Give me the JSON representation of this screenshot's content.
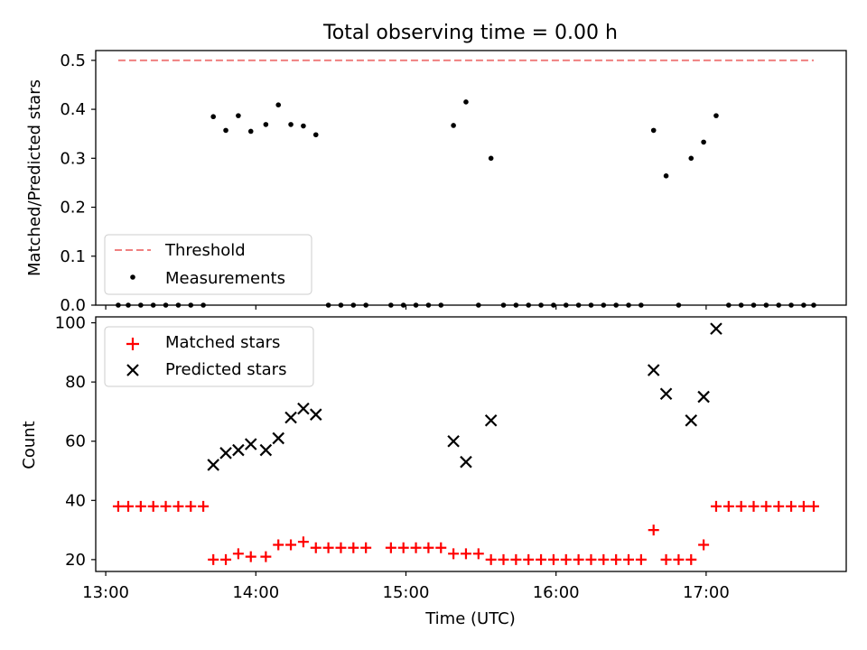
{
  "figure": {
    "title": "Total observing time = 0.00 h"
  },
  "chart_data": [
    {
      "type": "scatter",
      "ylabel": "Matched/Predicted stars",
      "ylim": [
        0,
        0.52
      ],
      "y_ticks": [
        "0.0",
        "0.1",
        "0.2",
        "0.3",
        "0.4",
        "0.5"
      ],
      "legend": {
        "placement": "lower-left"
      },
      "threshold": {
        "name": "Threshold",
        "value": 0.5,
        "x_range": [
          "13:05",
          "17:43"
        ],
        "color": "#f08080",
        "style": "dashed"
      },
      "series": [
        {
          "name": "Measurements",
          "color": "#000000",
          "marker": "dot",
          "points": [
            [
              "13:05",
              0
            ],
            [
              "13:09",
              0
            ],
            [
              "13:14",
              0
            ],
            [
              "13:19",
              0
            ],
            [
              "13:24",
              0
            ],
            [
              "13:29",
              0
            ],
            [
              "13:34",
              0
            ],
            [
              "13:39",
              0
            ],
            [
              "13:43",
              0.385
            ],
            [
              "13:48",
              0.357
            ],
            [
              "13:53",
              0.387
            ],
            [
              "13:58",
              0.355
            ],
            [
              "14:04",
              0.369
            ],
            [
              "14:09",
              0.409
            ],
            [
              "14:14",
              0.369
            ],
            [
              "14:19",
              0.366
            ],
            [
              "14:24",
              0.348
            ],
            [
              "14:29",
              0
            ],
            [
              "14:34",
              0
            ],
            [
              "14:39",
              0
            ],
            [
              "14:44",
              0
            ],
            [
              "14:54",
              0
            ],
            [
              "14:59",
              0
            ],
            [
              "15:04",
              0
            ],
            [
              "15:09",
              0
            ],
            [
              "15:14",
              0
            ],
            [
              "15:19",
              0.367
            ],
            [
              "15:24",
              0.415
            ],
            [
              "15:29",
              0
            ],
            [
              "15:34",
              0.3
            ],
            [
              "15:39",
              0
            ],
            [
              "15:44",
              0
            ],
            [
              "15:49",
              0
            ],
            [
              "15:54",
              0
            ],
            [
              "15:59",
              0
            ],
            [
              "16:04",
              0
            ],
            [
              "16:09",
              0
            ],
            [
              "16:14",
              0
            ],
            [
              "16:19",
              0
            ],
            [
              "16:24",
              0
            ],
            [
              "16:29",
              0
            ],
            [
              "16:34",
              0
            ],
            [
              "16:39",
              0.357
            ],
            [
              "16:44",
              0.264
            ],
            [
              "16:49",
              0
            ],
            [
              "16:54",
              0.3
            ],
            [
              "16:59",
              0.333
            ],
            [
              "17:04",
              0.387
            ],
            [
              "17:09",
              0
            ],
            [
              "17:14",
              0
            ],
            [
              "17:19",
              0
            ],
            [
              "17:24",
              0
            ],
            [
              "17:29",
              0
            ],
            [
              "17:34",
              0
            ],
            [
              "17:39",
              0
            ],
            [
              "17:43",
              0
            ]
          ]
        }
      ]
    },
    {
      "type": "scatter",
      "ylabel": "Count",
      "xlabel": "Time (UTC)",
      "ylim": [
        16,
        102
      ],
      "y_ticks": [
        "20",
        "40",
        "60",
        "80",
        "100"
      ],
      "x_ticks": [
        "13:00",
        "14:00",
        "15:00",
        "16:00",
        "17:00"
      ],
      "xlim": [
        "12:56",
        "17:56"
      ],
      "legend": {
        "placement": "top-left"
      },
      "series": [
        {
          "name": "Matched stars",
          "color": "#ff0000",
          "marker": "plus",
          "points": [
            [
              "13:05",
              38
            ],
            [
              "13:09",
              38
            ],
            [
              "13:14",
              38
            ],
            [
              "13:19",
              38
            ],
            [
              "13:24",
              38
            ],
            [
              "13:29",
              38
            ],
            [
              "13:34",
              38
            ],
            [
              "13:39",
              38
            ],
            [
              "13:43",
              20
            ],
            [
              "13:48",
              20
            ],
            [
              "13:53",
              22
            ],
            [
              "13:58",
              21
            ],
            [
              "14:04",
              21
            ],
            [
              "14:09",
              25
            ],
            [
              "14:14",
              25
            ],
            [
              "14:19",
              26
            ],
            [
              "14:24",
              24
            ],
            [
              "14:29",
              24
            ],
            [
              "14:34",
              24
            ],
            [
              "14:39",
              24
            ],
            [
              "14:44",
              24
            ],
            [
              "14:54",
              24
            ],
            [
              "14:59",
              24
            ],
            [
              "15:04",
              24
            ],
            [
              "15:09",
              24
            ],
            [
              "15:14",
              24
            ],
            [
              "15:19",
              22
            ],
            [
              "15:24",
              22
            ],
            [
              "15:29",
              22
            ],
            [
              "15:34",
              20
            ],
            [
              "15:39",
              20
            ],
            [
              "15:44",
              20
            ],
            [
              "15:49",
              20
            ],
            [
              "15:54",
              20
            ],
            [
              "15:59",
              20
            ],
            [
              "16:04",
              20
            ],
            [
              "16:09",
              20
            ],
            [
              "16:14",
              20
            ],
            [
              "16:19",
              20
            ],
            [
              "16:24",
              20
            ],
            [
              "16:29",
              20
            ],
            [
              "16:34",
              20
            ],
            [
              "16:39",
              30
            ],
            [
              "16:44",
              20
            ],
            [
              "16:49",
              20
            ],
            [
              "16:54",
              20
            ],
            [
              "16:59",
              25
            ],
            [
              "17:04",
              38
            ],
            [
              "17:09",
              38
            ],
            [
              "17:14",
              38
            ],
            [
              "17:19",
              38
            ],
            [
              "17:24",
              38
            ],
            [
              "17:29",
              38
            ],
            [
              "17:34",
              38
            ],
            [
              "17:39",
              38
            ],
            [
              "17:43",
              38
            ]
          ]
        },
        {
          "name": "Predicted stars",
          "color": "#000000",
          "marker": "x",
          "points": [
            [
              "13:43",
              52
            ],
            [
              "13:48",
              56
            ],
            [
              "13:53",
              57
            ],
            [
              "13:58",
              59
            ],
            [
              "14:04",
              57
            ],
            [
              "14:09",
              61
            ],
            [
              "14:14",
              68
            ],
            [
              "14:19",
              71
            ],
            [
              "14:24",
              69
            ],
            [
              "15:19",
              60
            ],
            [
              "15:24",
              53
            ],
            [
              "15:34",
              67
            ],
            [
              "16:39",
              84
            ],
            [
              "16:44",
              76
            ],
            [
              "16:54",
              67
            ],
            [
              "16:59",
              75
            ],
            [
              "17:04",
              98
            ]
          ]
        }
      ]
    }
  ]
}
